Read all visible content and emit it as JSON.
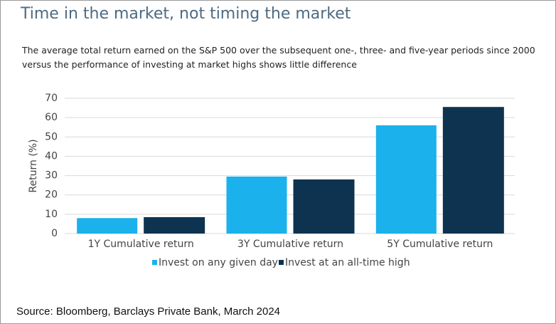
{
  "chart_data": {
    "type": "bar",
    "title": "Time in the market, not timing the market",
    "subtitle": "The average total return earned on the S&P 500 over the subsequent one-, three- and five-year periods since 2000 versus the performance of investing at market highs shows little difference",
    "y_label": "Return (%)",
    "categories": [
      "1Y Cumulative return",
      "3Y Cumulative return",
      "5Y Cumulative return"
    ],
    "series": [
      {
        "name": "Invest on any given day",
        "color": "#1ab1ec",
        "values": [
          8,
          29.5,
          56
        ]
      },
      {
        "name": "Invest at an all-time high",
        "color": "#0d3350",
        "values": [
          8.5,
          28,
          65.5
        ]
      }
    ],
    "ylim": [
      0,
      70
    ],
    "yticks": [
      0,
      10,
      20,
      30,
      40,
      50,
      60,
      70
    ],
    "grid": true,
    "source": "Source: Bloomberg, Barclays Private Bank, March 2024"
  }
}
